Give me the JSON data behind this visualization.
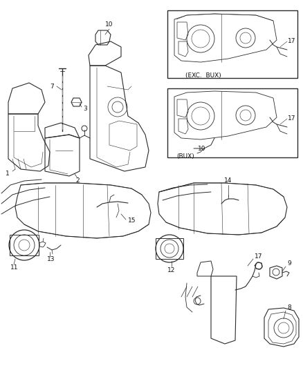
{
  "bg_color": "#ffffff",
  "line_color": "#2a2a2a",
  "fig_width": 4.38,
  "fig_height": 5.33,
  "dpi": 100,
  "label_fontsize": 6.5,
  "annot_fontsize": 6.5,
  "exc_bux_label": "(EXC.  BUX)",
  "bux_label": "(BUX)"
}
